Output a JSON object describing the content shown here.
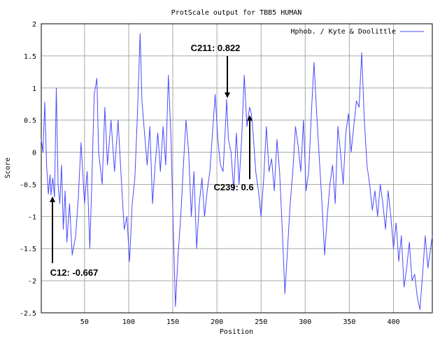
{
  "chart_data": {
    "type": "line",
    "title": "ProtScale output for TBB5 HUMAN",
    "xlabel": "Position",
    "ylabel": "Score",
    "xlim": [
      1,
      444
    ],
    "ylim": [
      -2.5,
      2
    ],
    "x_ticks": [
      50,
      100,
      150,
      200,
      250,
      300,
      350,
      400
    ],
    "y_ticks": [
      -2.5,
      -2,
      -1.5,
      -1,
      -0.5,
      0,
      0.5,
      1,
      1.5,
      2
    ],
    "y_tick_labels": [
      "-2.5",
      "-2",
      "-1.5",
      "-1",
      "-0.5",
      "0",
      "0.5",
      "1",
      "1.5",
      "2"
    ],
    "grid": true,
    "legend_position": "top-right",
    "series": [
      {
        "name": "Hphob. / Kyte & Doolittle",
        "color": "#4a4aff",
        "anchors": [
          [
            1,
            0.2
          ],
          [
            3,
            0.0
          ],
          [
            5,
            0.78
          ],
          [
            7,
            -0.2
          ],
          [
            9,
            -0.65
          ],
          [
            11,
            -0.35
          ],
          [
            12,
            -0.667
          ],
          [
            14,
            -0.4
          ],
          [
            16,
            -0.7
          ],
          [
            18,
            1.0
          ],
          [
            20,
            -0.5
          ],
          [
            22,
            -0.8
          ],
          [
            24,
            -0.2
          ],
          [
            26,
            -1.2
          ],
          [
            28,
            -0.6
          ],
          [
            30,
            -1.4
          ],
          [
            33,
            -0.8
          ],
          [
            36,
            -1.6
          ],
          [
            40,
            -1.3
          ],
          [
            43,
            -0.7
          ],
          [
            46,
            0.15
          ],
          [
            50,
            -0.8
          ],
          [
            53,
            -0.3
          ],
          [
            56,
            -1.5
          ],
          [
            58,
            -0.6
          ],
          [
            61,
            0.9
          ],
          [
            64,
            1.15
          ],
          [
            66,
            0.0
          ],
          [
            70,
            -0.5
          ],
          [
            73,
            0.7
          ],
          [
            76,
            -0.2
          ],
          [
            80,
            0.5
          ],
          [
            84,
            -0.3
          ],
          [
            88,
            0.5
          ],
          [
            92,
            -0.5
          ],
          [
            95,
            -1.2
          ],
          [
            98,
            -1.0
          ],
          [
            101,
            -1.7
          ],
          [
            104,
            -0.8
          ],
          [
            107,
            -0.4
          ],
          [
            110,
            0.6
          ],
          [
            113,
            1.85
          ],
          [
            115,
            0.8
          ],
          [
            118,
            0.3
          ],
          [
            121,
            -0.2
          ],
          [
            124,
            0.4
          ],
          [
            127,
            -0.8
          ],
          [
            130,
            -0.2
          ],
          [
            133,
            0.3
          ],
          [
            136,
            -0.3
          ],
          [
            139,
            0.4
          ],
          [
            142,
            -0.2
          ],
          [
            145,
            1.2
          ],
          [
            148,
            0.2
          ],
          [
            150,
            -0.9
          ],
          [
            153,
            -2.4
          ],
          [
            156,
            -1.6
          ],
          [
            159,
            -1.0
          ],
          [
            162,
            -0.2
          ],
          [
            165,
            0.5
          ],
          [
            168,
            0.0
          ],
          [
            171,
            -1.0
          ],
          [
            174,
            -0.3
          ],
          [
            177,
            -1.5
          ],
          [
            180,
            -0.8
          ],
          [
            183,
            -0.4
          ],
          [
            186,
            -1.0
          ],
          [
            189,
            -0.6
          ],
          [
            192,
            -0.3
          ],
          [
            195,
            0.3
          ],
          [
            198,
            0.9
          ],
          [
            201,
            0.2
          ],
          [
            204,
            -0.2
          ],
          [
            207,
            -0.3
          ],
          [
            210,
            0.5
          ],
          [
            211,
            0.822
          ],
          [
            213,
            0.2
          ],
          [
            216,
            0.0
          ],
          [
            219,
            -0.6
          ],
          [
            222,
            0.3
          ],
          [
            225,
            -0.5
          ],
          [
            228,
            0.2
          ],
          [
            231,
            1.2
          ],
          [
            234,
            0.4
          ],
          [
            237,
            0.7
          ],
          [
            239,
            0.6
          ],
          [
            241,
            0.3
          ],
          [
            244,
            -0.3
          ],
          [
            247,
            -0.6
          ],
          [
            250,
            -1.0
          ],
          [
            253,
            -0.4
          ],
          [
            256,
            0.4
          ],
          [
            259,
            -0.3
          ],
          [
            262,
            -0.1
          ],
          [
            265,
            -0.6
          ],
          [
            268,
            0.2
          ],
          [
            271,
            -0.3
          ],
          [
            274,
            -1.2
          ],
          [
            277,
            -2.2
          ],
          [
            280,
            -1.5
          ],
          [
            283,
            -0.8
          ],
          [
            286,
            -0.3
          ],
          [
            289,
            0.4
          ],
          [
            292,
            0.1
          ],
          [
            295,
            -0.3
          ],
          [
            298,
            0.5
          ],
          [
            301,
            -0.6
          ],
          [
            304,
            -0.3
          ],
          [
            307,
            0.6
          ],
          [
            310,
            1.4
          ],
          [
            313,
            0.6
          ],
          [
            316,
            -0.1
          ],
          [
            319,
            -0.8
          ],
          [
            322,
            -1.6
          ],
          [
            325,
            -1.0
          ],
          [
            328,
            -0.5
          ],
          [
            331,
            -0.2
          ],
          [
            334,
            -0.8
          ],
          [
            337,
            0.4
          ],
          [
            340,
            0.0
          ],
          [
            343,
            -0.5
          ],
          [
            346,
            0.3
          ],
          [
            349,
            0.6
          ],
          [
            352,
            0.0
          ],
          [
            355,
            0.4
          ],
          [
            358,
            0.8
          ],
          [
            361,
            0.7
          ],
          [
            364,
            1.55
          ],
          [
            367,
            0.5
          ],
          [
            370,
            -0.2
          ],
          [
            373,
            -0.5
          ],
          [
            376,
            -0.9
          ],
          [
            379,
            -0.6
          ],
          [
            382,
            -1.0
          ],
          [
            385,
            -0.5
          ],
          [
            388,
            -0.8
          ],
          [
            391,
            -1.2
          ],
          [
            394,
            -0.6
          ],
          [
            397,
            -1.0
          ],
          [
            400,
            -1.5
          ],
          [
            403,
            -1.1
          ],
          [
            406,
            -1.7
          ],
          [
            409,
            -1.3
          ],
          [
            412,
            -2.1
          ],
          [
            415,
            -1.8
          ],
          [
            418,
            -1.4
          ],
          [
            421,
            -2.0
          ],
          [
            424,
            -1.9
          ],
          [
            427,
            -2.25
          ],
          [
            430,
            -2.45
          ],
          [
            433,
            -1.9
          ],
          [
            436,
            -1.3
          ],
          [
            439,
            -1.8
          ],
          [
            442,
            -1.5
          ],
          [
            444,
            -1.3
          ]
        ]
      }
    ],
    "annotations": [
      {
        "label": "C211: 0.822",
        "x": 211,
        "y": 0.822
      },
      {
        "label": "C239: 0.6",
        "x": 239,
        "y": 0.6
      },
      {
        "label": "C12: -0.667",
        "x": 12,
        "y": -0.667
      }
    ]
  }
}
